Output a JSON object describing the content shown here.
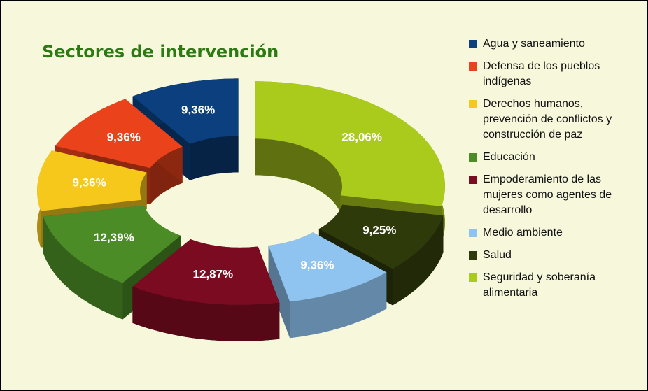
{
  "chart_data": {
    "type": "pie",
    "donut": true,
    "title": "Sectores de intervención",
    "categories": [
      "Agua y saneamiento",
      "Defensa de los pueblos indígenas",
      "Derechos humanos, prevención de conflictos y construcción de paz",
      "Educación",
      "Empoderamiento de las mujeres como agentes de desarrollo",
      "Medio ambiente",
      "Salud",
      "Seguridad y soberanía alimentaria"
    ],
    "values": [
      9.36,
      9.36,
      9.36,
      12.39,
      12.87,
      9.36,
      9.25,
      28.06
    ],
    "value_labels": [
      "9,36%",
      "9,36%",
      "9,36%",
      "12,39%",
      "12,87%",
      "9,36%",
      "9,25%",
      "28,06%"
    ],
    "colors": [
      "#0b3f7e",
      "#ea421b",
      "#f6c81c",
      "#4b8c27",
      "#7b0b20",
      "#8fc3f0",
      "#2f3a0b",
      "#aacb1b"
    ],
    "legend": "right"
  }
}
